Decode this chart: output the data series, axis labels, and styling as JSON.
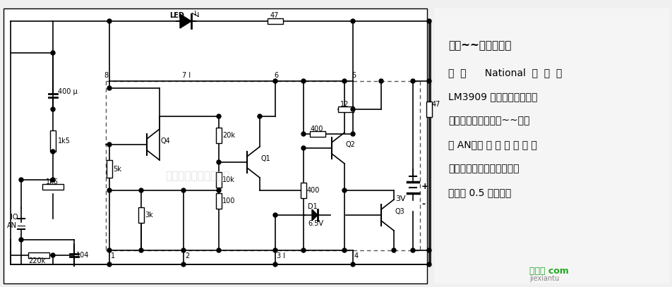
{
  "bg_color": "#f0f0f0",
  "circuit_bg": "#ffffff",
  "line_color": "#000000",
  "dot_color": "#000000",
  "dashed_color": "#555555",
  "text_color": "#000000",
  "title_line1": "只闪~~下的发光二",
  "title_line2": "极  管      National  公  司  的",
  "title_line3": "LM3909 集成电路连接成单",
  "title_line4": "稳多谐振荡器；每按~~下按",
  "title_line5": "钮 AN，使 电 路 瞬 间 被 触",
  "title_line6": "发。这个电路能使发光二极",
  "title_line7": "管发光 0.5 秒之久。",
  "watermark": "杭州佟睿科技有限公司",
  "logo_text": "接线图 com",
  "logo_sub": "jiexiantu"
}
